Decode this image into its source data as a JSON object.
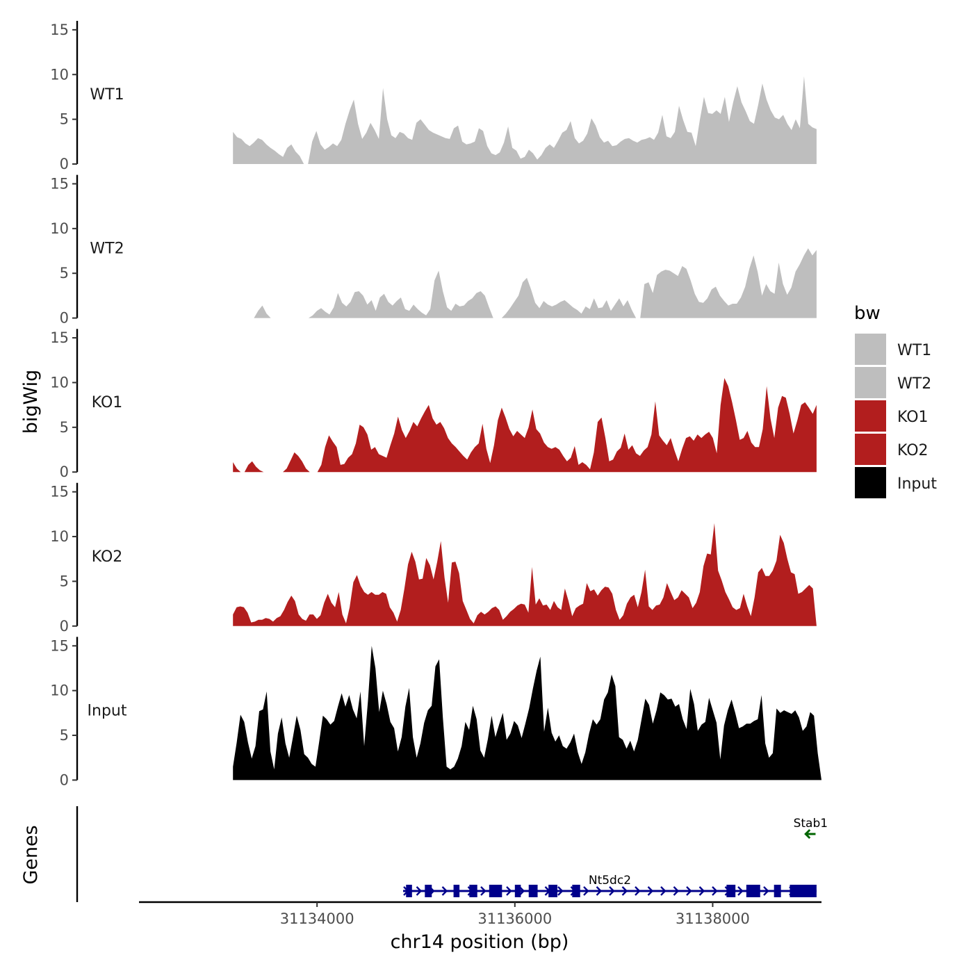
{
  "chart_data": {
    "type": "area",
    "y_axis_title": "bigWig",
    "x_axis_title": "chr14 position (bp)",
    "genes_axis_title": "Genes",
    "x_range": [
      31132200,
      31139100
    ],
    "x_ticks": [
      31134000,
      31136000,
      31138000
    ],
    "x_tick_labels": [
      "31134000",
      "31136000",
      "31138000"
    ],
    "y_range": [
      0,
      16
    ],
    "y_ticks": [
      0,
      5,
      10,
      15
    ],
    "y_tick_labels": [
      "0",
      "5",
      "10",
      "15"
    ],
    "legend": {
      "title": "bw",
      "entries": [
        {
          "label": "WT1",
          "color": "#bebebe"
        },
        {
          "label": "WT2",
          "color": "#bebebe"
        },
        {
          "label": "KO1",
          "color": "#b21e1e"
        },
        {
          "label": "KO2",
          "color": "#b21e1e"
        },
        {
          "label": "Input",
          "color": "#000000"
        }
      ]
    },
    "tracks": [
      {
        "name": "WT1",
        "color": "#bebebe",
        "x_start": 31133150,
        "x_end": 31139050,
        "values": [
          3.6,
          3.0,
          2.8,
          2.3,
          2.0,
          2.4,
          2.9,
          2.7,
          2.2,
          1.8,
          1.5,
          1.1,
          0.8,
          1.8,
          2.2,
          1.4,
          0.9,
          0,
          0,
          2.5,
          3.7,
          2.2,
          1.6,
          1.9,
          2.3,
          2.0,
          2.7,
          4.5,
          6.0,
          7.2,
          4.5,
          2.8,
          3.5,
          4.6,
          3.8,
          2.8,
          8.5,
          5.0,
          3.2,
          2.9,
          3.6,
          3.4,
          2.9,
          2.7,
          4.6,
          5.0,
          4.4,
          3.8,
          3.5,
          3.3,
          3.1,
          2.9,
          2.8,
          4.0,
          4.3,
          2.5,
          2.2,
          2.3,
          2.5,
          4.0,
          3.7,
          2.0,
          1.2,
          1.0,
          1.3,
          2.4,
          4.2,
          1.8,
          1.5,
          0.6,
          0.8,
          1.6,
          1.2,
          0.5,
          1.0,
          1.8,
          2.2,
          1.8,
          2.6,
          3.5,
          3.8,
          4.8,
          2.9,
          2.3,
          2.6,
          3.4,
          5.1,
          4.3,
          3.0,
          2.4,
          2.6,
          2.0,
          2.1,
          2.5,
          2.8,
          2.9,
          2.6,
          2.4,
          2.7,
          2.8,
          3.0,
          2.7,
          3.5,
          5.5,
          3.1,
          2.9,
          3.6,
          6.5,
          4.9,
          3.6,
          3.5,
          2.0,
          4.9,
          7.5,
          5.7,
          5.6,
          6.0,
          5.6,
          7.5,
          4.7,
          6.9,
          8.7,
          6.9,
          5.9,
          4.8,
          4.5,
          6.6,
          9.0,
          7.2,
          6.0,
          5.2,
          5.0,
          5.5,
          4.5,
          3.8,
          5.0,
          4.0,
          9.8,
          4.5,
          4.1,
          3.9
        ]
      },
      {
        "name": "WT2",
        "color": "#bebebe",
        "x_start": 31133150,
        "x_end": 31139050,
        "values": [
          0,
          0,
          0,
          0,
          0,
          0,
          0.8,
          1.4,
          0.5,
          0,
          0,
          0,
          0,
          0,
          0,
          0,
          0,
          0,
          0,
          0.3,
          0.8,
          1.1,
          0.7,
          0.4,
          1.2,
          2.8,
          1.7,
          1.3,
          1.8,
          2.9,
          3.0,
          2.5,
          1.5,
          2.0,
          0.8,
          2.3,
          2.7,
          1.8,
          1.4,
          1.9,
          2.3,
          1.0,
          0.8,
          1.5,
          1.0,
          0.6,
          0.3,
          1.0,
          4.2,
          5.3,
          3.0,
          1.2,
          0.8,
          1.6,
          1.3,
          1.4,
          1.9,
          2.2,
          2.8,
          3.0,
          2.5,
          1.2,
          0,
          0,
          0,
          0.5,
          1.1,
          1.8,
          2.5,
          4.0,
          4.5,
          3.2,
          1.7,
          1.1,
          1.9,
          1.5,
          1.3,
          1.5,
          1.8,
          2.0,
          1.6,
          1.2,
          0.9,
          0.5,
          1.3,
          1.0,
          2.2,
          1.1,
          1.2,
          2.0,
          0.8,
          1.5,
          2.2,
          1.3,
          2.0,
          0.9,
          0,
          0,
          3.8,
          4.0,
          2.8,
          4.8,
          5.2,
          5.4,
          5.3,
          5.0,
          4.7,
          5.8,
          5.5,
          4.2,
          2.7,
          1.8,
          1.7,
          2.2,
          3.2,
          3.5,
          2.5,
          1.9,
          1.4,
          1.6,
          1.6,
          2.3,
          3.5,
          5.5,
          7.0,
          5.1,
          2.5,
          3.8,
          3.0,
          2.7,
          6.2,
          3.8,
          2.6,
          3.4,
          5.2,
          6.0,
          7.0,
          7.8,
          7.0,
          7.6
        ]
      },
      {
        "name": "KO1",
        "color": "#b21e1e",
        "x_start": 31133150,
        "x_end": 31139050,
        "values": [
          1.1,
          0.4,
          0,
          0,
          0.8,
          1.2,
          0.6,
          0.2,
          0,
          0,
          0,
          0,
          0,
          0,
          0.4,
          1.3,
          2.2,
          1.8,
          1.2,
          0.4,
          0,
          0,
          0,
          0.8,
          2.8,
          4.1,
          3.4,
          2.8,
          0.8,
          0.9,
          1.6,
          2.0,
          3.2,
          5.3,
          5.0,
          4.2,
          2.5,
          2.8,
          2.0,
          1.8,
          1.6,
          3.0,
          4.3,
          6.2,
          4.7,
          3.8,
          4.6,
          5.6,
          5.1,
          6.0,
          6.8,
          7.5,
          6.0,
          5.3,
          5.6,
          4.9,
          3.8,
          3.2,
          2.8,
          2.3,
          1.8,
          1.4,
          2.2,
          2.8,
          3.2,
          5.4,
          2.6,
          1.0,
          3.0,
          5.8,
          7.2,
          6.1,
          4.8,
          4.0,
          4.6,
          4.2,
          3.8,
          5.0,
          7.0,
          4.8,
          4.3,
          3.3,
          2.8,
          2.6,
          2.8,
          2.5,
          1.8,
          1.2,
          1.6,
          2.9,
          0.8,
          1.1,
          0.8,
          0.3,
          2.2,
          5.6,
          6.1,
          3.8,
          1.2,
          1.4,
          2.3,
          2.7,
          4.3,
          2.5,
          3.0,
          2.1,
          1.8,
          2.4,
          2.8,
          4.2,
          7.9,
          4.1,
          3.5,
          3.0,
          3.8,
          2.4,
          1.2,
          2.6,
          3.8,
          4.0,
          3.5,
          4.2,
          3.8,
          4.2,
          4.5,
          3.8,
          2.1,
          7.5,
          10.5,
          9.6,
          7.8,
          5.8,
          3.6,
          3.8,
          4.6,
          3.3,
          2.8,
          2.8,
          4.8,
          9.6,
          6.0,
          3.8,
          7.2,
          8.5,
          8.3,
          6.5,
          4.3,
          5.8,
          7.5,
          7.8,
          7.2,
          6.5,
          7.5
        ]
      },
      {
        "name": "KO2",
        "color": "#b21e1e",
        "x_start": 31133150,
        "x_end": 31139050,
        "values": [
          1.3,
          2.1,
          2.2,
          2.1,
          1.5,
          0.4,
          0.5,
          0.7,
          0.7,
          0.9,
          0.8,
          0.5,
          0.9,
          1.1,
          1.8,
          2.7,
          3.4,
          2.8,
          1.3,
          0.8,
          0.6,
          1.3,
          1.3,
          0.8,
          1.2,
          2.6,
          3.6,
          2.6,
          2.1,
          3.8,
          1.3,
          0.3,
          2.1,
          4.9,
          5.7,
          4.5,
          3.8,
          3.5,
          3.8,
          3.5,
          3.5,
          3.8,
          3.6,
          2.1,
          1.5,
          0.5,
          1.8,
          4.2,
          6.9,
          8.3,
          7.2,
          5.2,
          5.3,
          7.6,
          6.8,
          5.2,
          7.2,
          9.5,
          5.4,
          2.6,
          7.1,
          7.2,
          5.9,
          2.8,
          1.8,
          0.8,
          0.3,
          1.2,
          1.6,
          1.3,
          1.6,
          2.0,
          2.2,
          1.8,
          0.7,
          1.1,
          1.6,
          1.9,
          2.3,
          2.5,
          2.4,
          1.5,
          6.6,
          2.4,
          3.1,
          2.3,
          2.4,
          1.8,
          2.8,
          2.1,
          1.8,
          4.2,
          2.8,
          1.1,
          2.0,
          2.3,
          2.5,
          4.8,
          3.9,
          4.1,
          3.4,
          4.0,
          4.4,
          4.3,
          3.6,
          1.8,
          0.7,
          1.2,
          2.5,
          3.2,
          3.5,
          2.1,
          3.8,
          6.3,
          2.2,
          1.8,
          2.3,
          2.4,
          3.2,
          4.8,
          3.8,
          2.9,
          3.2,
          4.0,
          3.6,
          3.2,
          2.0,
          2.6,
          3.8,
          6.7,
          8.1,
          8.0,
          11.5,
          6.2,
          5.1,
          3.8,
          3.0,
          2.1,
          1.8,
          2.0,
          3.6,
          2.2,
          1.1,
          3.2,
          6.0,
          6.5,
          5.6,
          5.6,
          6.2,
          7.3,
          10.2,
          9.3,
          7.5,
          6.0,
          5.8,
          3.6,
          3.8,
          4.2,
          4.6,
          4.2,
          0
        ]
      },
      {
        "name": "Input",
        "color": "#000000",
        "x_start": 31133150,
        "x_end": 31139100,
        "values": [
          1.5,
          4.2,
          7.3,
          6.5,
          4.2,
          2.4,
          3.8,
          7.7,
          7.9,
          9.9,
          3.2,
          1.2,
          5.2,
          7.0,
          4.1,
          2.5,
          4.8,
          7.2,
          5.6,
          2.9,
          2.5,
          1.8,
          1.5,
          4.3,
          7.2,
          6.8,
          6.2,
          6.6,
          8.2,
          9.7,
          8.2,
          9.5,
          7.9,
          6.9,
          9.9,
          3.8,
          8.8,
          15.0,
          12.5,
          7.6,
          10.0,
          8.5,
          6.5,
          5.8,
          3.2,
          4.8,
          8.2,
          10.3,
          4.8,
          2.5,
          4.1,
          6.4,
          7.8,
          8.3,
          12.7,
          13.5,
          7.0,
          1.5,
          1.2,
          1.5,
          2.4,
          3.8,
          6.5,
          5.6,
          8.3,
          6.8,
          3.3,
          2.5,
          4.6,
          7.2,
          4.8,
          6.2,
          7.5,
          4.5,
          5.2,
          6.6,
          6.1,
          4.7,
          6.3,
          8.0,
          10.2,
          12.2,
          13.8,
          5.4,
          8.1,
          5.3,
          4.3,
          5.0,
          3.8,
          3.5,
          4.2,
          5.2,
          3.1,
          1.8,
          3.1,
          5.2,
          6.8,
          6.2,
          6.8,
          9.0,
          9.8,
          11.8,
          10.5,
          4.8,
          4.5,
          3.5,
          4.4,
          3.2,
          4.5,
          6.8,
          9.1,
          8.4,
          6.3,
          7.8,
          9.8,
          9.5,
          9.0,
          9.1,
          8.2,
          8.5,
          6.8,
          5.7,
          10.2,
          8.5,
          5.5,
          6.2,
          6.5,
          9.2,
          7.8,
          6.4,
          2.3,
          6.1,
          7.8,
          9.0,
          7.5,
          5.8,
          6.0,
          6.3,
          6.3,
          6.6,
          6.8,
          9.5,
          4.1,
          2.5,
          3.0,
          8.0,
          7.5,
          7.8,
          7.6,
          7.4,
          7.8,
          7.0,
          5.5,
          6.0,
          7.6,
          7.2,
          3.0,
          0
        ]
      }
    ],
    "genes": [
      {
        "name": "Nt5dc2",
        "color": "#00008b",
        "strand": "+",
        "start": 31134870,
        "end": 31139050,
        "exons": [
          [
            31134900,
            31134960
          ],
          [
            31135090,
            31135160
          ],
          [
            31135380,
            31135440
          ],
          [
            31135540,
            31135620
          ],
          [
            31135740,
            31135870
          ],
          [
            31136000,
            31136060
          ],
          [
            31136140,
            31136230
          ],
          [
            31136340,
            31136430
          ],
          [
            31136580,
            31136660
          ],
          [
            31138140,
            31138230
          ],
          [
            31138340,
            31138480
          ],
          [
            31138620,
            31138690
          ],
          [
            31138780,
            31139050
          ]
        ]
      },
      {
        "name": "Stab1",
        "color": "#006400",
        "strand": "-",
        "start": 31138940,
        "end": 31139040,
        "exons": []
      }
    ]
  }
}
